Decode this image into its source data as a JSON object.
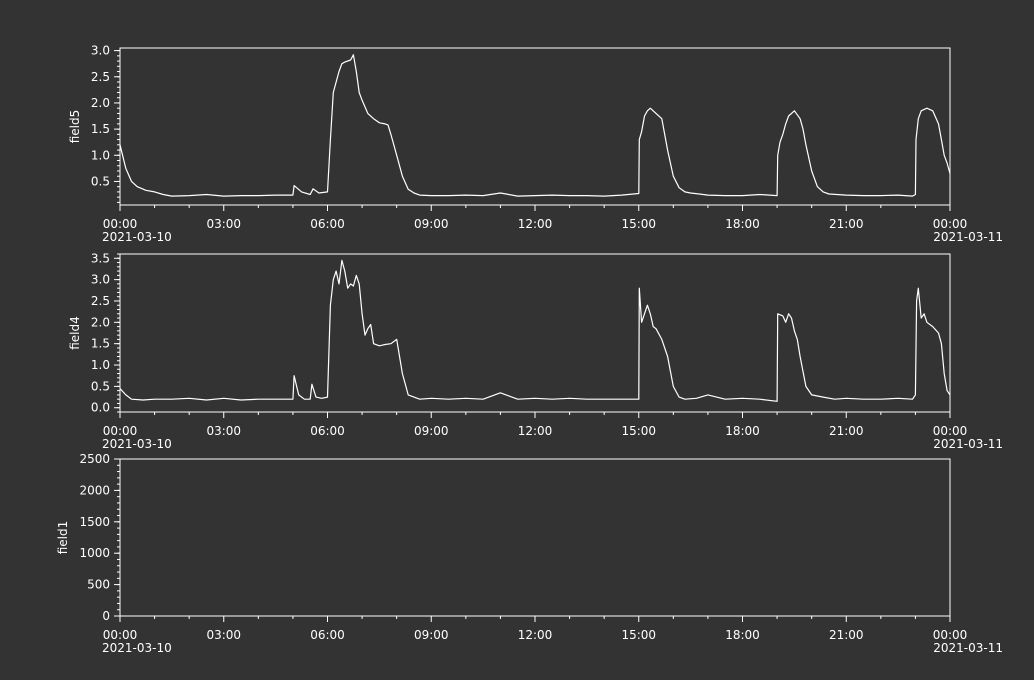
{
  "colors": {
    "background": "#333333",
    "foreground": "#ffffff"
  },
  "chart_data": [
    {
      "type": "line",
      "ylabel": "field5",
      "ylim": [
        0.05,
        3.05
      ],
      "yticks": [
        0.5,
        1.0,
        1.5,
        2.0,
        2.5,
        3.0
      ],
      "ytick_labels": [
        "0.5",
        "1.0",
        "1.5",
        "2.0",
        "2.5",
        "3.0"
      ],
      "yminor_step": 0.1,
      "xlim": [
        "00:00",
        "24:00"
      ],
      "xticks": [
        "00:00",
        "03:00",
        "06:00",
        "09:00",
        "12:00",
        "15:00",
        "18:00",
        "21:00",
        "00:00"
      ],
      "xdate_start": "2021-03-10",
      "xdate_end": "2021-03-11",
      "series": [
        {
          "x": [
            "00:00",
            "00:10",
            "00:20",
            "00:30",
            "00:45",
            "01:00",
            "01:15",
            "01:30",
            "02:00",
            "02:30",
            "03:00",
            "03:30",
            "04:00",
            "04:30",
            "05:00",
            "05:02",
            "05:15",
            "05:30",
            "05:35",
            "05:45",
            "06:00",
            "06:05",
            "06:10",
            "06:20",
            "06:25",
            "06:30",
            "06:40",
            "06:45",
            "06:50",
            "06:55",
            "07:00",
            "07:10",
            "07:20",
            "07:30",
            "07:40",
            "07:45",
            "07:50",
            "08:00",
            "08:10",
            "08:20",
            "08:30",
            "08:40",
            "09:00",
            "09:30",
            "10:00",
            "10:30",
            "11:00",
            "11:30",
            "12:00",
            "12:30",
            "13:00",
            "13:30",
            "14:00",
            "14:30",
            "15:00",
            "15:01",
            "15:05",
            "15:10",
            "15:15",
            "15:20",
            "15:30",
            "15:40",
            "15:45",
            "15:50",
            "16:00",
            "16:10",
            "16:20",
            "16:30",
            "16:45",
            "17:00",
            "17:30",
            "18:00",
            "18:30",
            "19:00",
            "19:01",
            "19:05",
            "19:10",
            "19:15",
            "19:20",
            "19:30",
            "19:40",
            "19:45",
            "19:50",
            "20:00",
            "20:10",
            "20:20",
            "20:30",
            "21:00",
            "21:30",
            "22:00",
            "22:30",
            "22:55",
            "23:00",
            "23:01",
            "23:05",
            "23:10",
            "23:20",
            "23:30",
            "23:40",
            "23:45",
            "23:50",
            "23:55",
            "24:00"
          ],
          "y": [
            1.2,
            0.75,
            0.5,
            0.4,
            0.33,
            0.3,
            0.25,
            0.22,
            0.23,
            0.25,
            0.22,
            0.23,
            0.23,
            0.24,
            0.24,
            0.42,
            0.3,
            0.25,
            0.36,
            0.28,
            0.3,
            1.3,
            2.2,
            2.6,
            2.75,
            2.78,
            2.82,
            2.92,
            2.6,
            2.2,
            2.05,
            1.8,
            1.7,
            1.62,
            1.6,
            1.58,
            1.4,
            1.0,
            0.6,
            0.35,
            0.28,
            0.24,
            0.23,
            0.23,
            0.24,
            0.23,
            0.28,
            0.22,
            0.23,
            0.24,
            0.23,
            0.23,
            0.22,
            0.24,
            0.27,
            1.3,
            1.45,
            1.75,
            1.85,
            1.9,
            1.8,
            1.7,
            1.4,
            1.1,
            0.6,
            0.38,
            0.3,
            0.28,
            0.26,
            0.24,
            0.23,
            0.23,
            0.25,
            0.23,
            1.0,
            1.25,
            1.4,
            1.6,
            1.75,
            1.85,
            1.7,
            1.5,
            1.2,
            0.7,
            0.4,
            0.3,
            0.26,
            0.24,
            0.23,
            0.23,
            0.24,
            0.22,
            0.25,
            1.3,
            1.7,
            1.85,
            1.9,
            1.85,
            1.6,
            1.3,
            1.0,
            0.85,
            0.65
          ]
        }
      ]
    },
    {
      "type": "line",
      "ylabel": "field4",
      "ylim": [
        -0.1,
        3.6
      ],
      "yticks": [
        0.0,
        0.5,
        1.0,
        1.5,
        2.0,
        2.5,
        3.0,
        3.5
      ],
      "ytick_labels": [
        "0.0",
        "0.5",
        "1.0",
        "1.5",
        "2.0",
        "2.5",
        "3.0",
        "3.5"
      ],
      "yminor_step": 0.1,
      "xlim": [
        "00:00",
        "24:00"
      ],
      "xticks": [
        "00:00",
        "03:00",
        "06:00",
        "09:00",
        "12:00",
        "15:00",
        "18:00",
        "21:00",
        "00:00"
      ],
      "xdate_start": "2021-03-10",
      "xdate_end": "2021-03-11",
      "series": [
        {
          "x": [
            "00:00",
            "00:10",
            "00:20",
            "00:40",
            "01:00",
            "01:30",
            "02:00",
            "02:30",
            "03:00",
            "03:30",
            "04:00",
            "04:30",
            "05:00",
            "05:02",
            "05:10",
            "05:20",
            "05:30",
            "05:33",
            "05:40",
            "05:50",
            "06:00",
            "06:05",
            "06:10",
            "06:15",
            "06:20",
            "06:25",
            "06:30",
            "06:35",
            "06:40",
            "06:45",
            "06:50",
            "06:55",
            "07:00",
            "07:05",
            "07:10",
            "07:15",
            "07:20",
            "07:30",
            "07:40",
            "07:50",
            "08:00",
            "08:10",
            "08:20",
            "08:40",
            "09:00",
            "09:30",
            "10:00",
            "10:30",
            "11:00",
            "11:30",
            "12:00",
            "12:30",
            "13:00",
            "13:30",
            "14:00",
            "14:30",
            "15:00",
            "15:01",
            "15:05",
            "15:10",
            "15:15",
            "15:20",
            "15:25",
            "15:30",
            "15:40",
            "15:50",
            "16:00",
            "16:10",
            "16:20",
            "16:40",
            "17:00",
            "17:30",
            "18:00",
            "18:30",
            "19:00",
            "19:01",
            "19:10",
            "19:15",
            "19:20",
            "19:25",
            "19:30",
            "19:35",
            "19:40",
            "19:50",
            "20:00",
            "20:20",
            "20:40",
            "21:00",
            "21:30",
            "22:00",
            "22:30",
            "22:55",
            "23:00",
            "23:02",
            "23:05",
            "23:10",
            "23:15",
            "23:20",
            "23:30",
            "23:40",
            "23:45",
            "23:50",
            "23:55",
            "24:00"
          ],
          "y": [
            0.45,
            0.3,
            0.2,
            0.18,
            0.2,
            0.2,
            0.22,
            0.18,
            0.22,
            0.18,
            0.2,
            0.2,
            0.2,
            0.75,
            0.3,
            0.2,
            0.2,
            0.55,
            0.25,
            0.22,
            0.25,
            2.4,
            3.0,
            3.2,
            2.9,
            3.45,
            3.2,
            2.8,
            2.9,
            2.85,
            3.1,
            2.9,
            2.2,
            1.7,
            1.85,
            1.95,
            1.5,
            1.45,
            1.48,
            1.5,
            1.6,
            0.8,
            0.3,
            0.2,
            0.22,
            0.2,
            0.22,
            0.2,
            0.35,
            0.2,
            0.22,
            0.2,
            0.22,
            0.2,
            0.2,
            0.2,
            0.2,
            2.8,
            2.0,
            2.2,
            2.4,
            2.2,
            1.9,
            1.85,
            1.6,
            1.2,
            0.5,
            0.25,
            0.2,
            0.22,
            0.3,
            0.2,
            0.22,
            0.2,
            0.15,
            2.2,
            2.15,
            2.0,
            2.2,
            2.1,
            1.8,
            1.6,
            1.2,
            0.5,
            0.3,
            0.25,
            0.2,
            0.22,
            0.2,
            0.2,
            0.22,
            0.2,
            0.3,
            2.5,
            2.8,
            2.1,
            2.2,
            2.0,
            1.9,
            1.75,
            1.5,
            0.8,
            0.4,
            0.3
          ]
        }
      ]
    },
    {
      "type": "line",
      "ylabel": "field1",
      "ylim": [
        0,
        2500
      ],
      "yticks": [
        0,
        500,
        1000,
        1500,
        2000,
        2500
      ],
      "ytick_labels": [
        "0",
        "500",
        "1000",
        "1500",
        "2000",
        "2500"
      ],
      "yminor_step": 100,
      "xlim": [
        "00:00",
        "24:00"
      ],
      "xticks": [
        "00:00",
        "03:00",
        "06:00",
        "09:00",
        "12:00",
        "15:00",
        "18:00",
        "21:00",
        "00:00"
      ],
      "xdate_start": "2021-03-10",
      "xdate_end": "2021-03-11",
      "series": []
    }
  ]
}
